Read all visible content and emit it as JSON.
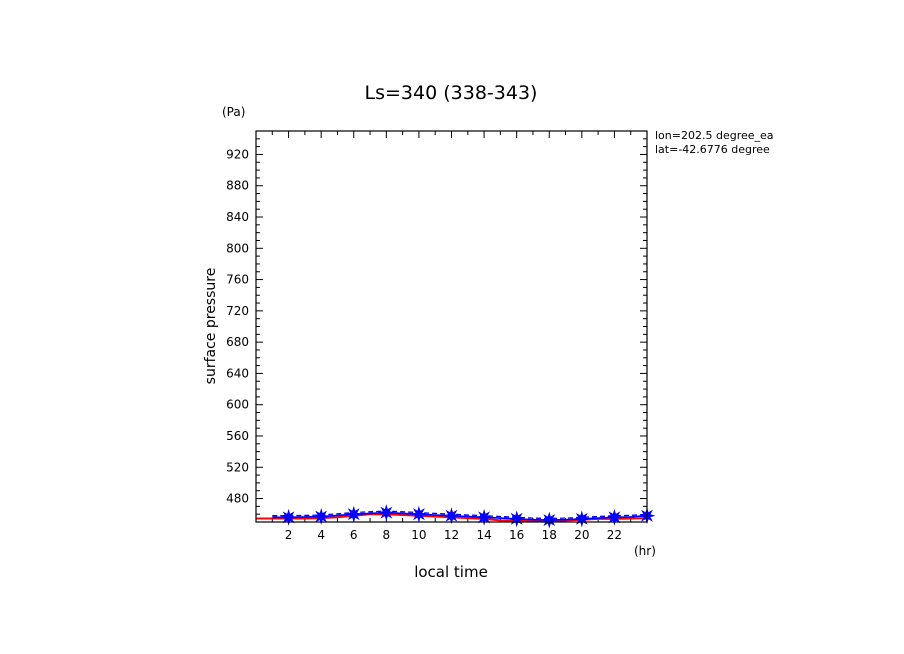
{
  "chart_data": {
    "type": "line",
    "title": "Ls=340 (338-343)",
    "xlabel": "local time",
    "xunit": "(hr)",
    "ylabel": "surface pressure",
    "yunit": "(Pa)",
    "annotation_lines": [
      "lon=202.5 degree_ea",
      "lat=-42.6776 degree"
    ],
    "xlim": [
      0,
      24
    ],
    "ylim": [
      450,
      950
    ],
    "xticks": [
      2,
      4,
      6,
      8,
      10,
      12,
      14,
      16,
      18,
      20,
      22
    ],
    "xtick_labels": [
      "2",
      "4",
      "6",
      "8",
      "10",
      "12",
      "14",
      "16",
      "18",
      "20",
      "22"
    ],
    "yticks": [
      480,
      520,
      560,
      600,
      640,
      680,
      720,
      760,
      800,
      840,
      880,
      920
    ],
    "ytick_labels": [
      "480",
      "520",
      "560",
      "600",
      "640",
      "680",
      "720",
      "760",
      "800",
      "840",
      "880",
      "920"
    ],
    "grid": false,
    "colors": {
      "red": "#ff0000",
      "blue": "#0000ff",
      "axis": "#000000"
    },
    "series": [
      {
        "style": "red-solid",
        "x": [
          0,
          1,
          2,
          3,
          4,
          5,
          6,
          7,
          8,
          9,
          10,
          11,
          12,
          13,
          14,
          15,
          16,
          17,
          18,
          19,
          20,
          21,
          22,
          23,
          24
        ],
        "values": [
          454.5,
          454.5,
          454.5,
          454.5,
          455,
          456,
          458,
          460,
          460,
          459,
          458,
          457,
          456,
          455,
          454,
          452,
          451.5,
          451,
          451,
          452,
          453,
          454,
          454,
          454.5,
          455
        ]
      },
      {
        "style": "blue-solid-star",
        "x": [
          1,
          2,
          3,
          4,
          5,
          6,
          7,
          8,
          9,
          10,
          11,
          12,
          13,
          14,
          15,
          16,
          17,
          18,
          19,
          20,
          21,
          22,
          23,
          24
        ],
        "values": [
          456,
          456,
          456.5,
          457,
          458.5,
          460,
          461,
          462,
          461,
          460,
          459,
          458,
          457,
          456,
          455,
          454,
          453,
          452.5,
          453,
          454,
          455,
          456,
          456.5,
          458
        ]
      },
      {
        "style": "blue-dashed",
        "x": [
          1,
          2,
          3,
          4,
          5,
          6,
          7,
          8,
          9,
          10,
          11,
          12,
          13,
          14,
          15,
          16,
          17,
          18,
          19,
          20,
          21,
          22,
          23,
          24
        ],
        "values": [
          458,
          458,
          458.5,
          459,
          460.5,
          462,
          463,
          464,
          463,
          462,
          461,
          460,
          459,
          458,
          457,
          456,
          455,
          454.5,
          455,
          456,
          457,
          458,
          458.5,
          460
        ]
      }
    ]
  }
}
